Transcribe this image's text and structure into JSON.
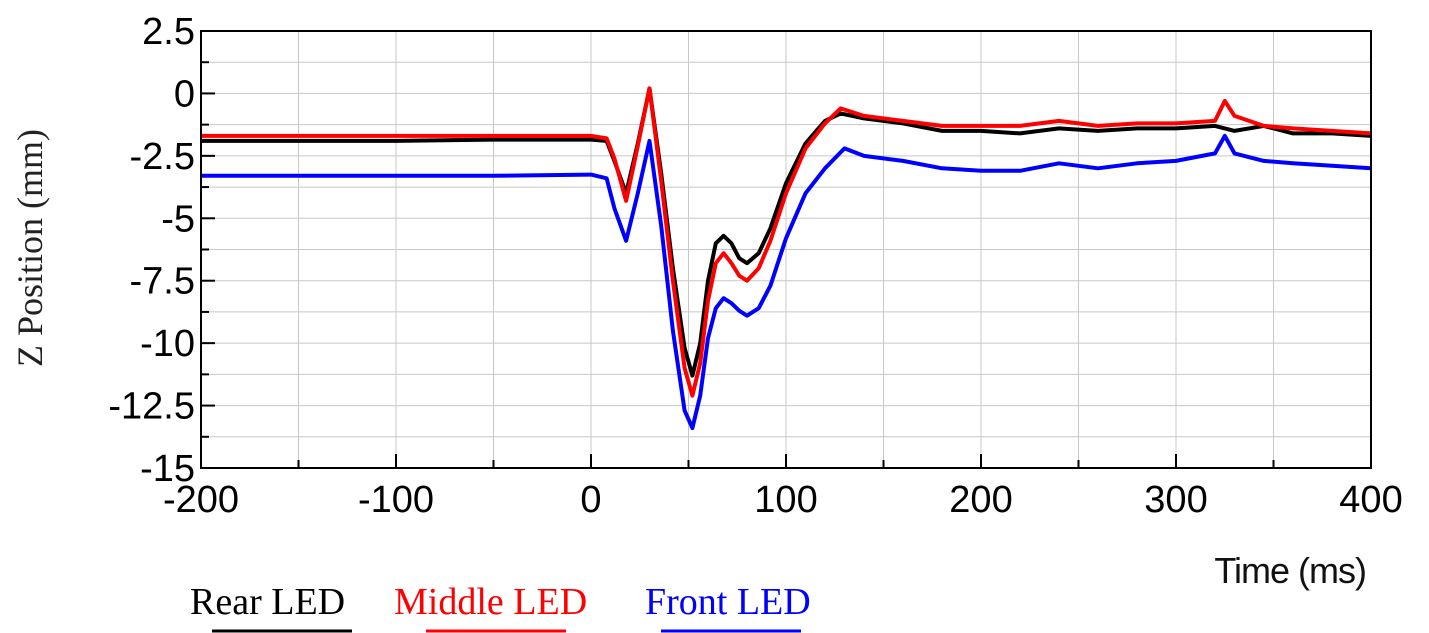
{
  "chart_data": {
    "type": "line",
    "title": "",
    "xlabel": "Time (ms)",
    "ylabel": "Z Position (mm)",
    "xlim": [
      -200,
      400
    ],
    "ylim": [
      -15,
      2.5
    ],
    "x_ticks": [
      -200,
      -100,
      0,
      100,
      200,
      300,
      400
    ],
    "x_tick_labels": [
      "-200",
      "-100",
      "0",
      "100",
      "200",
      "300",
      "400"
    ],
    "y_ticks": [
      2.5,
      0,
      -2.5,
      -5,
      -7.5,
      -10,
      -12.5,
      -15
    ],
    "y_tick_labels": [
      "2.5",
      "0",
      "-2.5",
      "-5",
      "-7.5",
      "-10",
      "-12.5",
      "-15"
    ],
    "grid": true,
    "legend_position": "bottom",
    "series": [
      {
        "name": "Rear LED",
        "color": "#000000",
        "x": [
          -200,
          -150,
          -100,
          -50,
          0,
          8,
          12,
          18,
          24,
          30,
          36,
          42,
          48,
          52,
          56,
          60,
          64,
          68,
          72,
          76,
          80,
          86,
          92,
          100,
          110,
          120,
          128,
          140,
          160,
          180,
          200,
          220,
          240,
          260,
          280,
          300,
          320,
          330,
          345,
          360,
          380,
          400
        ],
        "y": [
          -1.9,
          -1.9,
          -1.9,
          -1.85,
          -1.85,
          -1.9,
          -2.7,
          -4.0,
          -2.0,
          0.2,
          -3.2,
          -7.0,
          -10.2,
          -11.3,
          -10.0,
          -7.5,
          -6.0,
          -5.7,
          -6.0,
          -6.6,
          -6.8,
          -6.4,
          -5.4,
          -3.6,
          -2.0,
          -1.1,
          -0.8,
          -1.0,
          -1.2,
          -1.5,
          -1.5,
          -1.6,
          -1.4,
          -1.5,
          -1.4,
          -1.4,
          -1.3,
          -1.5,
          -1.3,
          -1.6,
          -1.6,
          -1.7
        ]
      },
      {
        "name": "Middle LED",
        "color": "#ff0000",
        "x": [
          -200,
          -150,
          -100,
          -50,
          0,
          8,
          12,
          18,
          24,
          30,
          36,
          42,
          48,
          52,
          56,
          60,
          64,
          68,
          72,
          76,
          80,
          86,
          92,
          100,
          110,
          120,
          128,
          140,
          160,
          180,
          200,
          220,
          240,
          260,
          280,
          300,
          320,
          325,
          330,
          345,
          360,
          380,
          400
        ],
        "y": [
          -1.7,
          -1.7,
          -1.7,
          -1.7,
          -1.7,
          -1.8,
          -2.6,
          -4.3,
          -2.1,
          0.2,
          -3.5,
          -7.5,
          -11.0,
          -12.1,
          -10.8,
          -8.3,
          -6.8,
          -6.4,
          -6.8,
          -7.3,
          -7.5,
          -7.0,
          -5.9,
          -4.0,
          -2.2,
          -1.2,
          -0.6,
          -0.9,
          -1.1,
          -1.3,
          -1.3,
          -1.3,
          -1.1,
          -1.3,
          -1.2,
          -1.2,
          -1.1,
          -0.3,
          -0.9,
          -1.3,
          -1.4,
          -1.5,
          -1.6
        ]
      },
      {
        "name": "Front LED",
        "color": "#0000ff",
        "x": [
          -200,
          -150,
          -100,
          -50,
          0,
          8,
          12,
          18,
          24,
          30,
          36,
          42,
          48,
          52,
          56,
          60,
          64,
          68,
          72,
          76,
          80,
          86,
          92,
          100,
          110,
          120,
          130,
          140,
          160,
          180,
          200,
          220,
          240,
          260,
          280,
          300,
          320,
          325,
          330,
          345,
          360,
          380,
          400
        ],
        "y": [
          -3.3,
          -3.3,
          -3.3,
          -3.3,
          -3.25,
          -3.4,
          -4.6,
          -5.9,
          -4.0,
          -1.9,
          -5.3,
          -9.5,
          -12.7,
          -13.4,
          -12.1,
          -9.8,
          -8.6,
          -8.2,
          -8.4,
          -8.7,
          -8.9,
          -8.6,
          -7.7,
          -5.8,
          -4.0,
          -3.0,
          -2.2,
          -2.5,
          -2.7,
          -3.0,
          -3.1,
          -3.1,
          -2.8,
          -3.0,
          -2.8,
          -2.7,
          -2.4,
          -1.7,
          -2.4,
          -2.7,
          -2.8,
          -2.9,
          -3.0
        ]
      }
    ]
  }
}
